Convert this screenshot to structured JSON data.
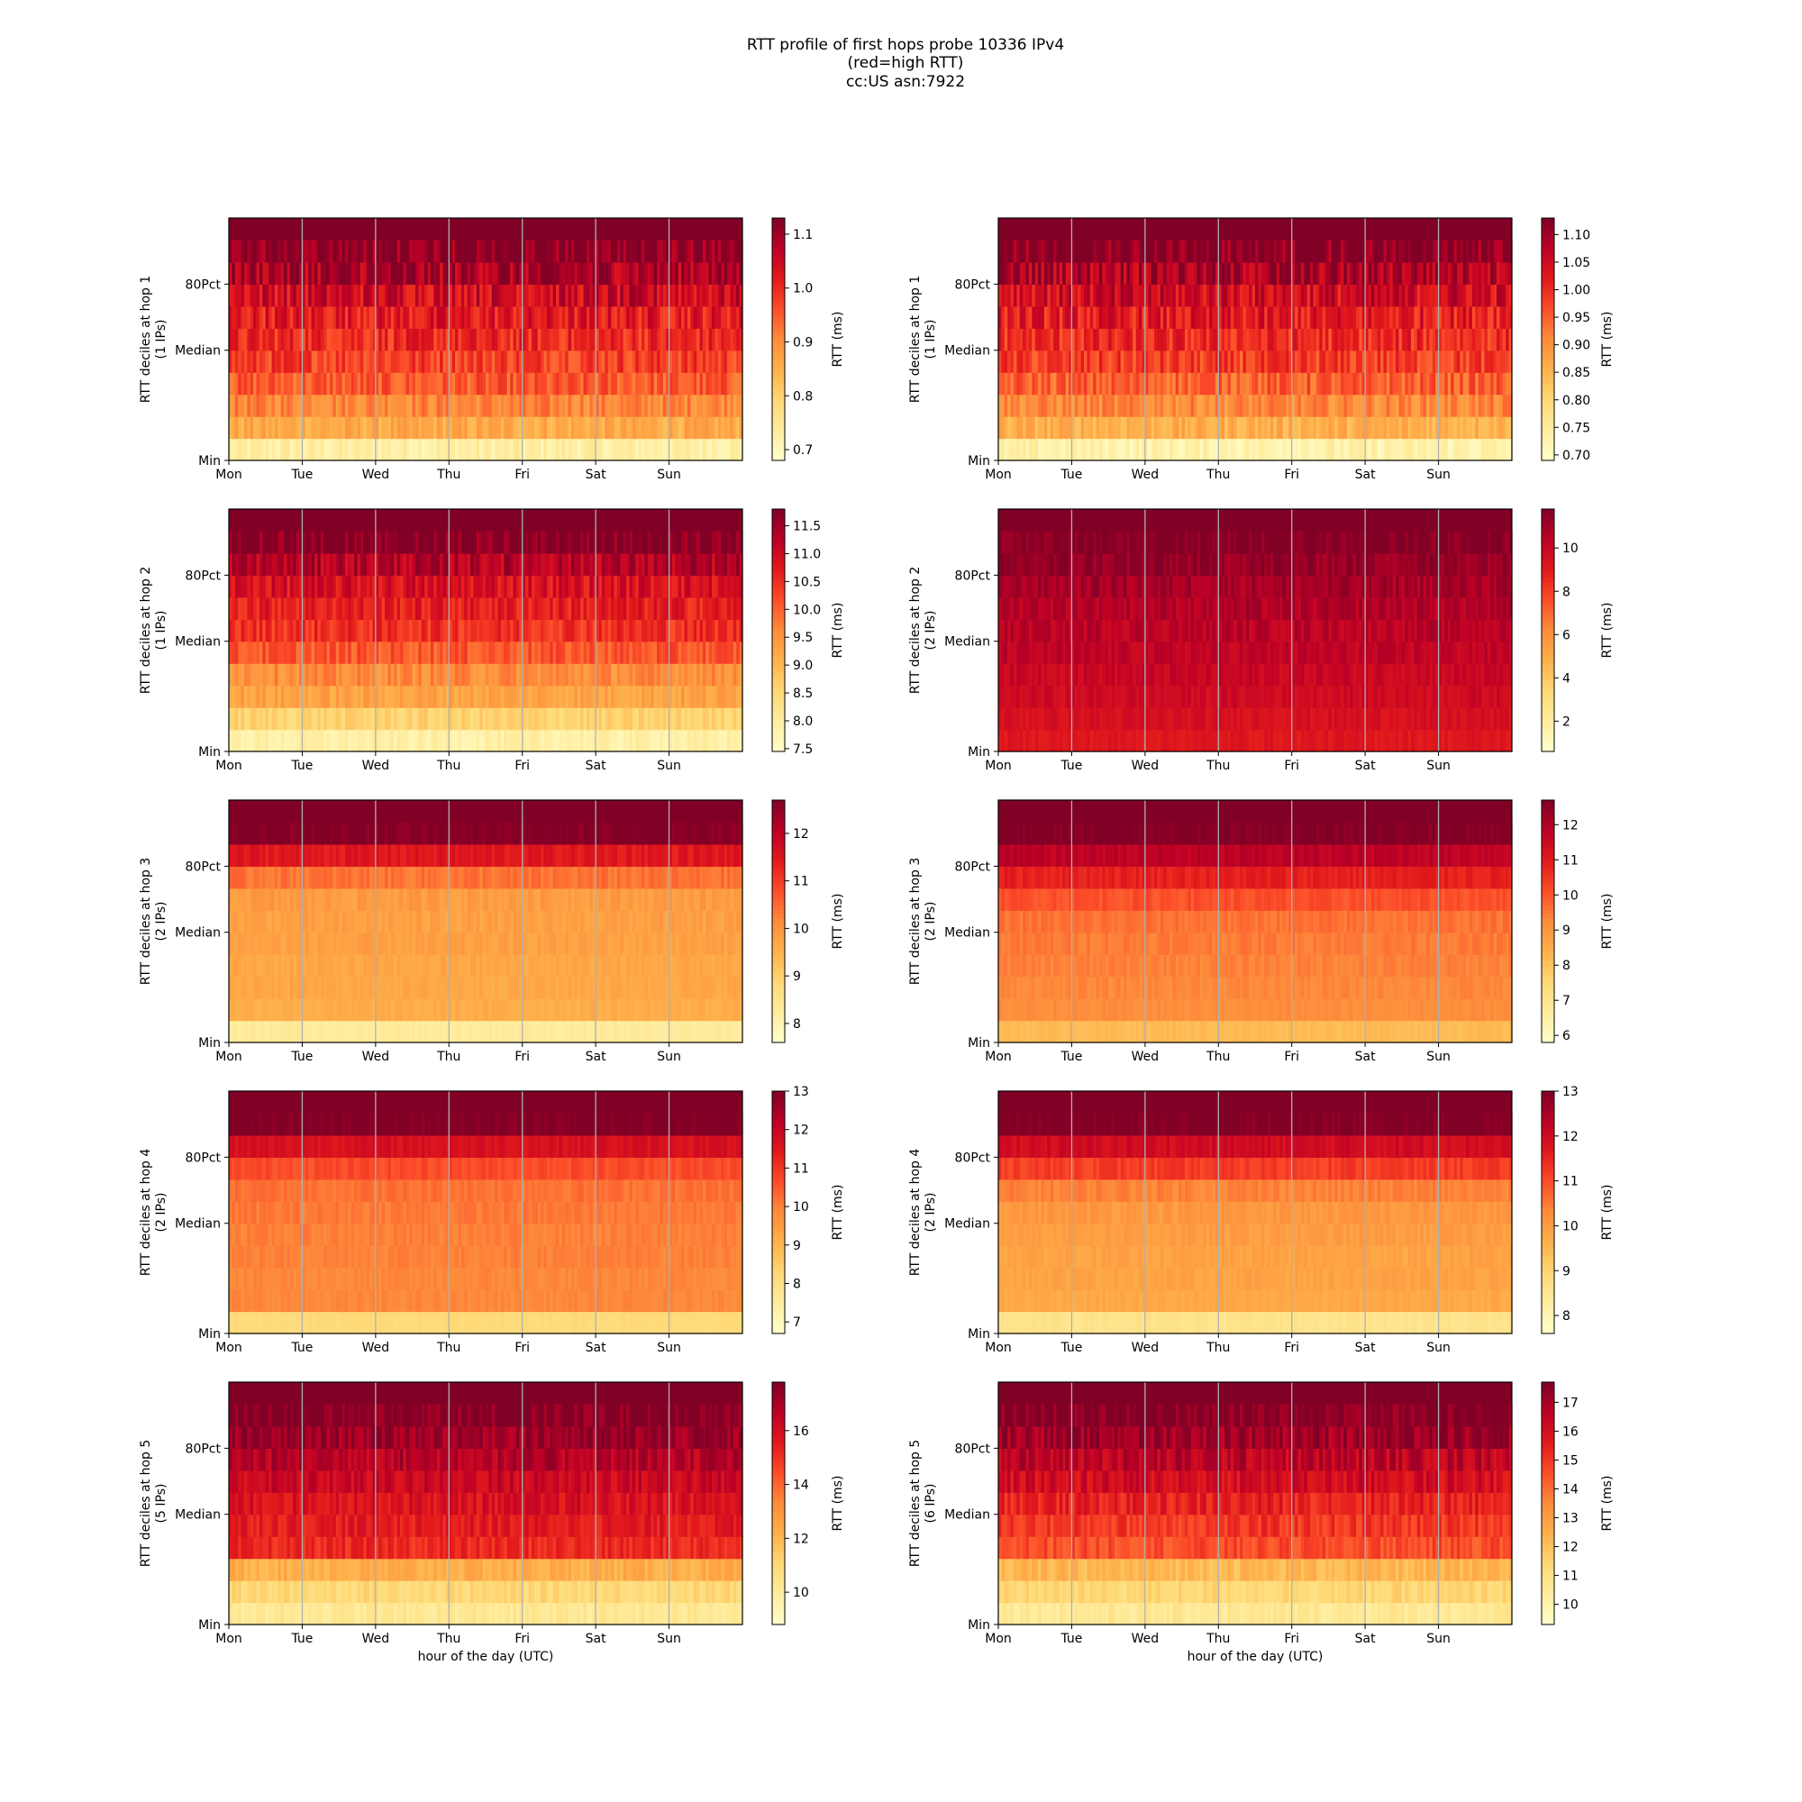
{
  "figure": {
    "title_lines": [
      "RTT profile of first hops probe 10336 IPv4",
      "(red=high RTT)",
      "cc:US asn:7922"
    ]
  },
  "colors": {
    "colormap": "YlOrRd",
    "stops": [
      "#ffffcc",
      "#ffeda0",
      "#fed976",
      "#feb24c",
      "#fd8d3c",
      "#fc4e2a",
      "#e31a1c",
      "#bd0026",
      "#800026"
    ],
    "grid": "#b0b0b0"
  },
  "chart_data": [
    {
      "type": "heatmap",
      "column": "left",
      "ylabel_lines": [
        "RTT deciles at hop 1",
        "(1 IPs)"
      ],
      "xticks": [
        "Mon",
        "Tue",
        "Wed",
        "Thu",
        "Fri",
        "Sat",
        "Sun"
      ],
      "yticks": [
        "Min",
        "Median",
        "80Pct"
      ],
      "xlabel": "",
      "colorbar": {
        "label": "RTT (ms)",
        "min": 0.68,
        "max": 1.13,
        "ticks": [
          0.7,
          0.8,
          0.9,
          1.0,
          1.1
        ],
        "tick_labels": [
          "0.7",
          "0.8",
          "0.9",
          "1.0",
          "1.1"
        ]
      },
      "deciles_rtt": [
        0.73,
        0.86,
        0.91,
        0.95,
        0.98,
        1.0,
        1.02,
        1.05,
        1.09,
        1.13
      ],
      "noise": 0.07
    },
    {
      "type": "heatmap",
      "column": "right",
      "ylabel_lines": [
        "RTT deciles at hop 1",
        "(1 IPs)"
      ],
      "xticks": [
        "Mon",
        "Tue",
        "Wed",
        "Thu",
        "Fri",
        "Sat",
        "Sun"
      ],
      "yticks": [
        "Min",
        "Median",
        "80Pct"
      ],
      "xlabel": "",
      "colorbar": {
        "label": "RTT (ms)",
        "min": 0.69,
        "max": 1.13,
        "ticks": [
          0.7,
          0.75,
          0.8,
          0.85,
          0.9,
          0.95,
          1.0,
          1.05,
          1.1
        ],
        "tick_labels": [
          "0.70",
          "0.75",
          "0.80",
          "0.85",
          "0.90",
          "0.95",
          "1.00",
          "1.05",
          "1.10"
        ]
      },
      "deciles_rtt": [
        0.73,
        0.86,
        0.91,
        0.95,
        0.98,
        1.0,
        1.02,
        1.05,
        1.09,
        1.13
      ],
      "noise": 0.07
    },
    {
      "type": "heatmap",
      "column": "left",
      "ylabel_lines": [
        "RTT deciles at hop 2",
        "(1 IPs)"
      ],
      "xticks": [
        "Mon",
        "Tue",
        "Wed",
        "Thu",
        "Fri",
        "Sat",
        "Sun"
      ],
      "yticks": [
        "Min",
        "Median",
        "80Pct"
      ],
      "xlabel": "",
      "colorbar": {
        "label": "RTT (ms)",
        "min": 7.45,
        "max": 11.8,
        "ticks": [
          7.5,
          8.0,
          8.5,
          9.0,
          9.5,
          10.0,
          10.5,
          11.0,
          11.5
        ],
        "tick_labels": [
          "7.5",
          "8.0",
          "8.5",
          "9.0",
          "9.5",
          "10.0",
          "10.5",
          "11.0",
          "11.5"
        ]
      },
      "deciles_rtt": [
        7.9,
        8.6,
        9.3,
        9.6,
        10.1,
        10.5,
        10.7,
        10.9,
        11.3,
        11.8
      ],
      "noise": 0.5
    },
    {
      "type": "heatmap",
      "column": "right",
      "ylabel_lines": [
        "RTT deciles at hop 2",
        "(2 IPs)"
      ],
      "xticks": [
        "Mon",
        "Tue",
        "Wed",
        "Thu",
        "Fri",
        "Sat",
        "Sun"
      ],
      "yticks": [
        "Min",
        "Median",
        "80Pct"
      ],
      "xlabel": "",
      "colorbar": {
        "label": "RTT (ms)",
        "min": 0.6,
        "max": 11.8,
        "ticks": [
          2,
          4,
          6,
          8,
          10
        ],
        "tick_labels": [
          "2",
          "4",
          "6",
          "8",
          "10"
        ]
      },
      "deciles_rtt": [
        9.2,
        9.5,
        9.8,
        10.0,
        10.2,
        10.4,
        10.6,
        10.9,
        11.3,
        11.8
      ],
      "noise": 0.8
    },
    {
      "type": "heatmap",
      "column": "left",
      "ylabel_lines": [
        "RTT deciles at hop 3",
        "(2 IPs)"
      ],
      "xticks": [
        "Mon",
        "Tue",
        "Wed",
        "Thu",
        "Fri",
        "Sat",
        "Sun"
      ],
      "yticks": [
        "Min",
        "Median",
        "80Pct"
      ],
      "xlabel": "",
      "colorbar": {
        "label": "RTT (ms)",
        "min": 7.6,
        "max": 12.7,
        "ticks": [
          8,
          9,
          10,
          11,
          12
        ],
        "tick_labels": [
          "8",
          "9",
          "10",
          "11",
          "12"
        ]
      },
      "deciles_rtt": [
        8.3,
        9.6,
        9.7,
        9.7,
        9.8,
        9.8,
        9.9,
        10.4,
        11.5,
        12.7
      ],
      "noise": 0.25
    },
    {
      "type": "heatmap",
      "column": "right",
      "ylabel_lines": [
        "RTT deciles at hop 3",
        "(2 IPs)"
      ],
      "xticks": [
        "Mon",
        "Tue",
        "Wed",
        "Thu",
        "Fri",
        "Sat",
        "Sun"
      ],
      "yticks": [
        "Min",
        "Median",
        "80Pct"
      ],
      "xlabel": "",
      "colorbar": {
        "label": "RTT (ms)",
        "min": 5.8,
        "max": 12.7,
        "ticks": [
          6,
          7,
          8,
          9,
          10,
          11,
          12
        ],
        "tick_labels": [
          "6",
          "7",
          "8",
          "9",
          "10",
          "11",
          "12"
        ]
      },
      "deciles_rtt": [
        8.2,
        9.2,
        9.3,
        9.4,
        9.5,
        9.6,
        10.1,
        10.9,
        11.8,
        12.7
      ],
      "noise": 0.3
    },
    {
      "type": "heatmap",
      "column": "left",
      "ylabel_lines": [
        "RTT deciles at hop 4",
        "(2 IPs)"
      ],
      "xticks": [
        "Mon",
        "Tue",
        "Wed",
        "Thu",
        "Fri",
        "Sat",
        "Sun"
      ],
      "yticks": [
        "Min",
        "Median",
        "80Pct"
      ],
      "xlabel": "",
      "colorbar": {
        "label": "RTT (ms)",
        "min": 6.7,
        "max": 13.0,
        "ticks": [
          7,
          8,
          9,
          10,
          11,
          12,
          13
        ],
        "tick_labels": [
          "7",
          "8",
          "9",
          "10",
          "11",
          "12",
          "13"
        ]
      },
      "deciles_rtt": [
        8.2,
        9.9,
        9.9,
        10.0,
        10.0,
        10.1,
        10.2,
        10.7,
        11.7,
        13.0
      ],
      "noise": 0.25
    },
    {
      "type": "heatmap",
      "column": "right",
      "ylabel_lines": [
        "RTT deciles at hop 4",
        "(2 IPs)"
      ],
      "xticks": [
        "Mon",
        "Tue",
        "Wed",
        "Thu",
        "Fri",
        "Sat",
        "Sun"
      ],
      "yticks": [
        "Min",
        "Median",
        "80Pct"
      ],
      "xlabel": "",
      "colorbar": {
        "label": "RTT (ms)",
        "min": 7.6,
        "max": 13.0,
        "ticks": [
          8,
          9,
          10,
          11,
          12,
          13
        ],
        "tick_labels": [
          "8",
          "9",
          "10",
          "11",
          "12",
          "13"
        ]
      },
      "deciles_rtt": [
        8.6,
        9.8,
        9.9,
        9.9,
        10.0,
        10.1,
        10.4,
        11.2,
        12.0,
        13.0
      ],
      "noise": 0.25
    },
    {
      "type": "heatmap",
      "column": "left",
      "ylabel_lines": [
        "RTT deciles at hop 5",
        "(5 IPs)"
      ],
      "xticks": [
        "Mon",
        "Tue",
        "Wed",
        "Thu",
        "Fri",
        "Sat",
        "Sun"
      ],
      "yticks": [
        "Min",
        "Median",
        "80Pct"
      ],
      "xlabel": "hour of the day (UTC)",
      "colorbar": {
        "label": "RTT (ms)",
        "min": 8.8,
        "max": 17.8,
        "ticks": [
          10,
          12,
          14,
          16
        ],
        "tick_labels": [
          "10",
          "12",
          "14",
          "16"
        ]
      },
      "deciles_rtt": [
        10.2,
        11.0,
        12.3,
        15.2,
        15.6,
        15.9,
        16.3,
        16.8,
        17.3,
        17.8
      ],
      "noise": 0.9
    },
    {
      "type": "heatmap",
      "column": "right",
      "ylabel_lines": [
        "RTT deciles at hop 5",
        "(6 IPs)"
      ],
      "xticks": [
        "Mon",
        "Tue",
        "Wed",
        "Thu",
        "Fri",
        "Sat",
        "Sun"
      ],
      "yticks": [
        "Min",
        "Median",
        "80Pct"
      ],
      "xlabel": "hour of the day (UTC)",
      "colorbar": {
        "label": "RTT (ms)",
        "min": 9.3,
        "max": 17.7,
        "ticks": [
          10,
          11,
          12,
          13,
          14,
          15,
          16,
          17
        ],
        "tick_labels": [
          "10",
          "11",
          "12",
          "13",
          "14",
          "15",
          "16",
          "17"
        ]
      },
      "deciles_rtt": [
        10.6,
        11.4,
        12.3,
        14.6,
        15.0,
        15.5,
        16.1,
        16.6,
        17.2,
        17.7
      ],
      "noise": 0.9
    }
  ]
}
